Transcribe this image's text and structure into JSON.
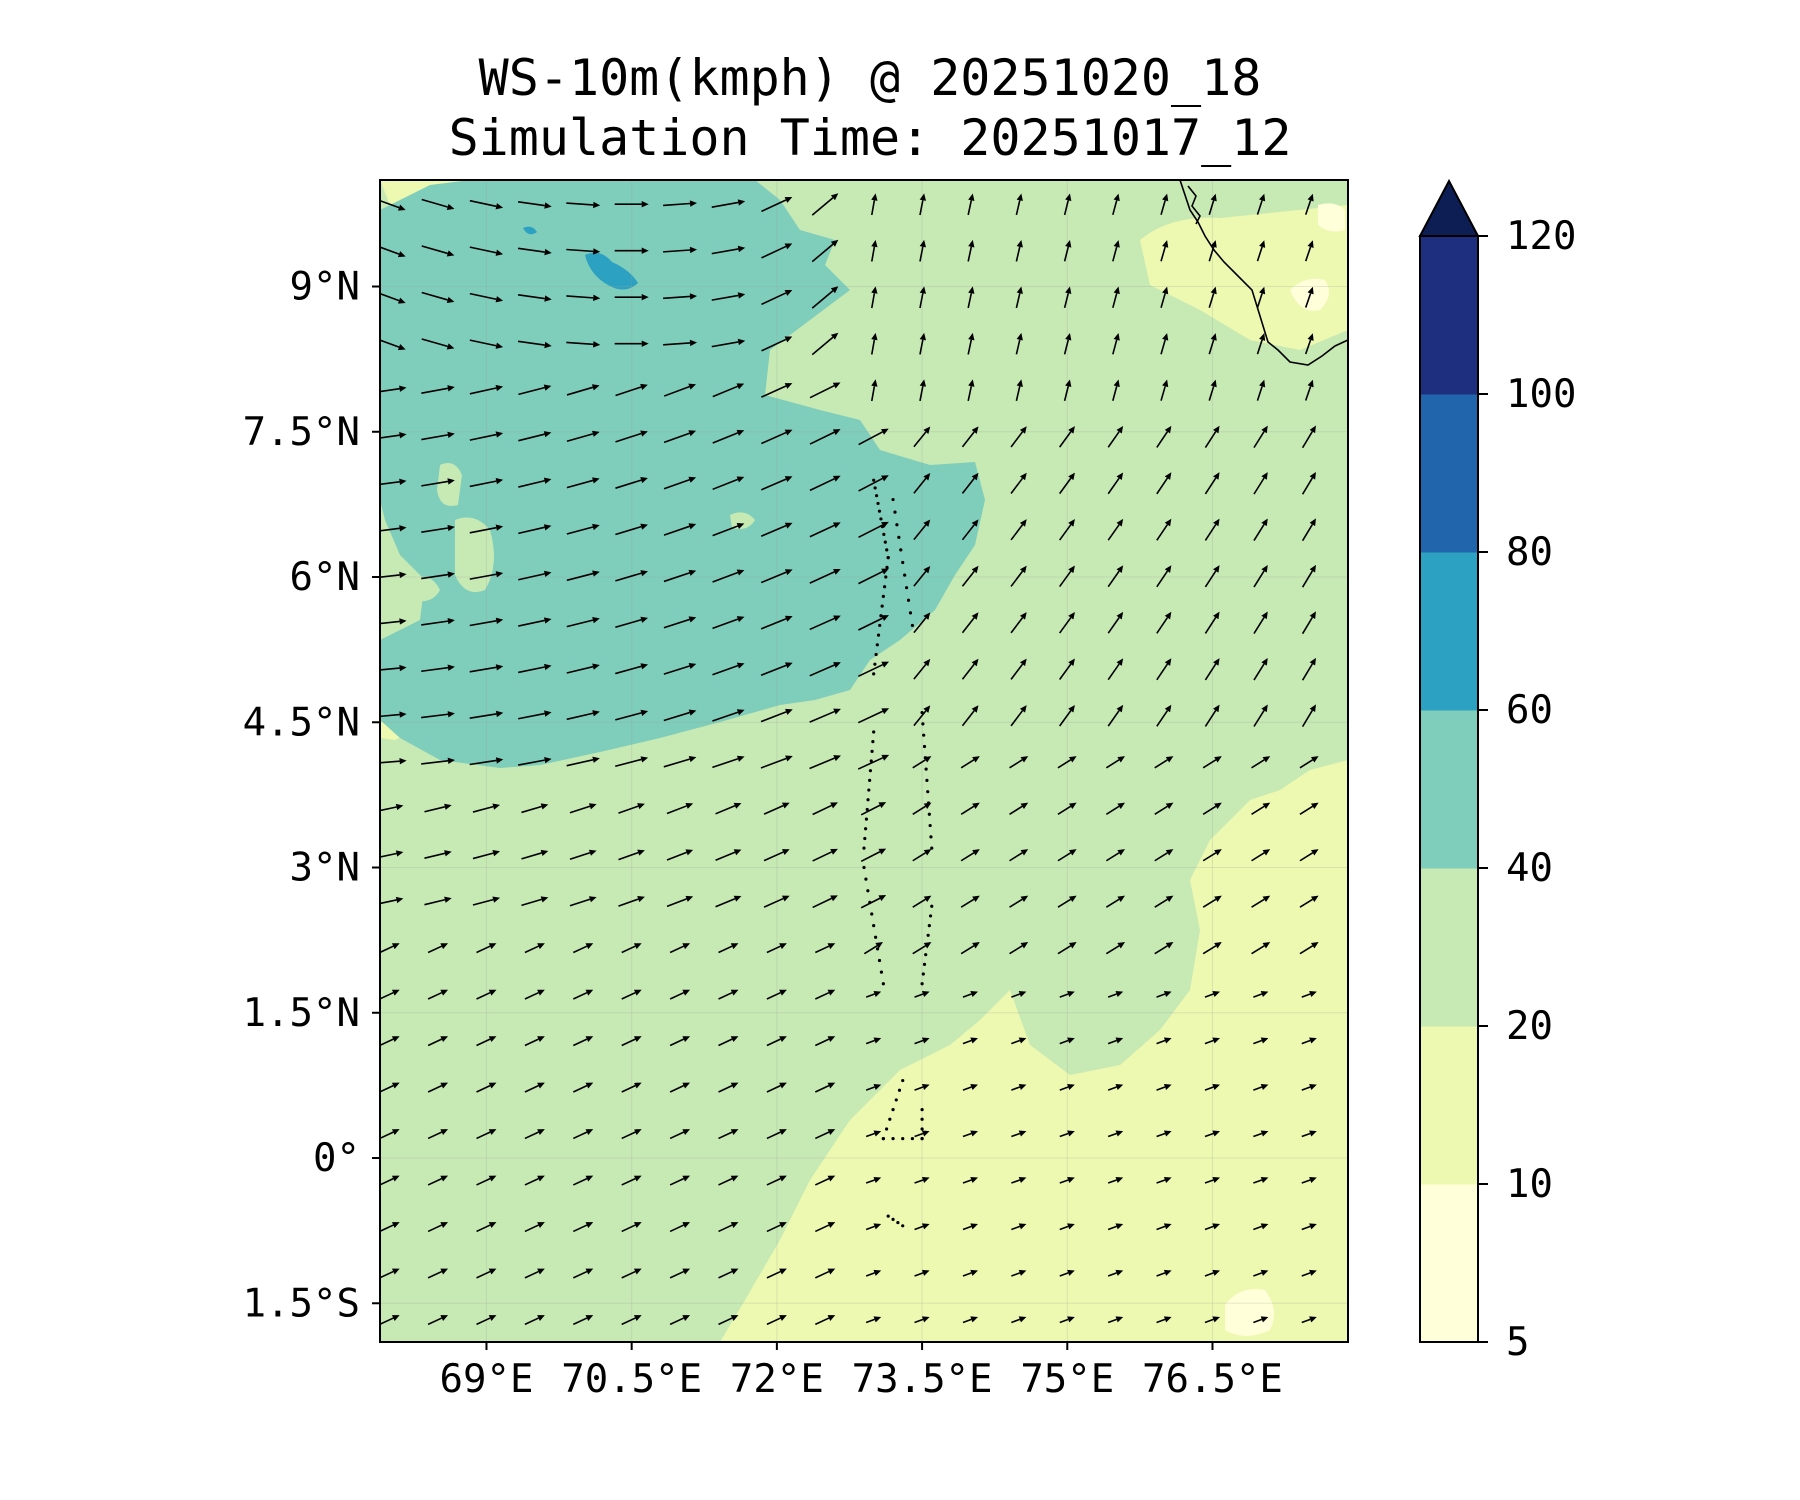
{
  "title": "WS-10m(kmph) @ 20251020_18",
  "subtitle": "Simulation Time: 20251017_12",
  "map": {
    "lon_range": [
      67.9,
      77.9
    ],
    "lat_range": [
      -1.9,
      10.1
    ],
    "lat_ticks": [
      {
        "value": 9,
        "label": "9°N"
      },
      {
        "value": 7.5,
        "label": "7.5°N"
      },
      {
        "value": 6,
        "label": "6°N"
      },
      {
        "value": 4.5,
        "label": "4.5°N"
      },
      {
        "value": 3,
        "label": "3°N"
      },
      {
        "value": 1.5,
        "label": "1.5°N"
      },
      {
        "value": 0,
        "label": "0°"
      },
      {
        "value": -1.5,
        "label": "1.5°S"
      }
    ],
    "lon_ticks": [
      {
        "value": 69,
        "label": "69°E"
      },
      {
        "value": 70.5,
        "label": "70.5°E"
      },
      {
        "value": 72,
        "label": "72°E"
      },
      {
        "value": 73.5,
        "label": "73.5°E"
      },
      {
        "value": 75,
        "label": "75°E"
      },
      {
        "value": 76.5,
        "label": "76.5°E"
      }
    ],
    "wind_vectors": "10m wind arrows on a 0.5° grid"
  },
  "colorbar": {
    "levels": [
      "5",
      "10",
      "20",
      "40",
      "60",
      "80",
      "100",
      "120"
    ],
    "colors": [
      "#ffffd9",
      "#edf8b1",
      "#c7e9b4",
      "#7fcdbb",
      "#2ca1c2",
      "#2166ac",
      "#1d2f7e"
    ],
    "extend_color": "#0d1e55"
  }
}
